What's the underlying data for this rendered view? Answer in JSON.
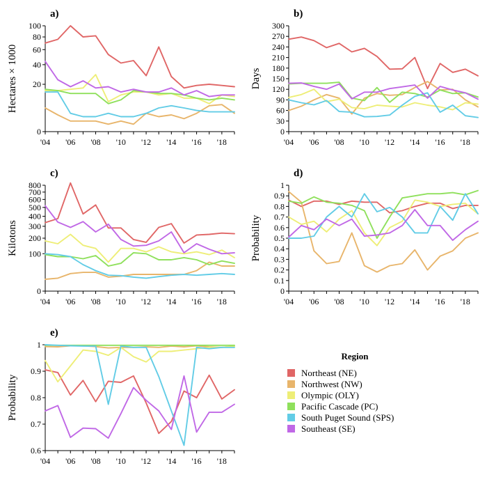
{
  "colors": {
    "NE": "#E06666",
    "NW": "#E8B56B",
    "OLY": "#EEEE77",
    "PC": "#8FE05C",
    "SPS": "#62CCE6",
    "SE": "#C068E6"
  },
  "legend": {
    "title": "Region",
    "items": [
      {
        "key": "NE",
        "label": "Northeast (NE)"
      },
      {
        "key": "NW",
        "label": "Northwest (NW)"
      },
      {
        "key": "OLY",
        "label": "Olympic (OLY)"
      },
      {
        "key": "PC",
        "label": "Pacific Cascade (PC)"
      },
      {
        "key": "SPS",
        "label": "South Puget Sound (SPS)"
      },
      {
        "key": "SE",
        "label": "Southeast (SE)"
      }
    ]
  },
  "chart_data": [
    {
      "id": "a",
      "panel_label": "a)",
      "type": "line",
      "ylabel": "Hectares × 1000",
      "yscale": "sqrt",
      "ylim": [
        0,
        100
      ],
      "yticks": [
        0,
        20,
        40,
        60,
        80,
        100
      ],
      "xticks": [
        "'04",
        "'06",
        "'08",
        "'10",
        "'12",
        "'14",
        "'16",
        "'18"
      ],
      "x": [
        2004,
        2005,
        2006,
        2007,
        2008,
        2009,
        2010,
        2011,
        2012,
        2013,
        2014,
        2015,
        2016,
        2017,
        2018,
        2019
      ],
      "series": [
        {
          "key": "NE",
          "values": [
            70,
            76,
            100,
            80,
            82,
            53,
            42,
            45,
            28,
            64,
            27,
            17,
            19,
            20,
            19,
            18
          ]
        },
        {
          "key": "NW",
          "values": [
            5,
            2.5,
            1,
            1,
            1,
            0.5,
            1,
            0.5,
            3,
            2,
            2.5,
            1.5,
            3,
            6,
            6.5,
            3
          ]
        },
        {
          "key": "OLY",
          "values": [
            15,
            15,
            16,
            17,
            29,
            8,
            12,
            14,
            14,
            12,
            13,
            10,
            10,
            7,
            12,
            11
          ]
        },
        {
          "key": "PC",
          "values": [
            16,
            15,
            13,
            13,
            13,
            7,
            9,
            15,
            14,
            13,
            13,
            12,
            10,
            9,
            10,
            9
          ]
        },
        {
          "key": "SPS",
          "values": [
            14,
            14,
            3,
            2,
            2,
            3,
            2,
            2,
            3,
            5,
            6,
            5,
            4,
            3.5,
            3.5,
            3.5
          ]
        },
        {
          "key": "SE",
          "values": [
            44,
            24,
            18,
            23,
            17,
            18,
            14,
            16,
            14,
            14,
            17,
            12,
            15,
            11,
            12,
            12
          ]
        }
      ]
    },
    {
      "id": "b",
      "panel_label": "b)",
      "type": "line",
      "ylabel": "Days",
      "yscale": "linear",
      "ylim": [
        0,
        300
      ],
      "yticks": [
        0,
        30,
        60,
        90,
        120,
        150,
        180,
        210,
        240,
        270,
        300
      ],
      "xticks": [
        "'04",
        "'06",
        "'08",
        "'10",
        "'12",
        "'14",
        "'16",
        "'18"
      ],
      "x": [
        2004,
        2005,
        2006,
        2007,
        2008,
        2009,
        2010,
        2011,
        2012,
        2013,
        2014,
        2015,
        2016,
        2017,
        2018,
        2019
      ],
      "series": [
        {
          "key": "NE",
          "values": [
            262,
            268,
            258,
            238,
            250,
            226,
            236,
            213,
            177,
            178,
            210,
            122,
            193,
            168,
            177,
            158
          ]
        },
        {
          "key": "NW",
          "values": [
            60,
            72,
            90,
            105,
            95,
            50,
            95,
            108,
            103,
            105,
            125,
            142,
            118,
            120,
            90,
            70
          ]
        },
        {
          "key": "OLY",
          "values": [
            97,
            105,
            120,
            85,
            92,
            68,
            65,
            75,
            72,
            70,
            82,
            75,
            70,
            62,
            82,
            78
          ]
        },
        {
          "key": "PC",
          "values": [
            135,
            137,
            137,
            137,
            140,
            95,
            88,
            125,
            83,
            112,
            108,
            98,
            118,
            108,
            110,
            98
          ]
        },
        {
          "key": "SPS",
          "values": [
            90,
            82,
            76,
            88,
            57,
            55,
            42,
            43,
            47,
            75,
            100,
            110,
            55,
            75,
            45,
            40
          ]
        },
        {
          "key": "SE",
          "values": [
            137,
            138,
            128,
            120,
            135,
            93,
            112,
            112,
            122,
            127,
            132,
            95,
            128,
            118,
            110,
            92
          ]
        }
      ]
    },
    {
      "id": "c",
      "panel_label": "c)",
      "type": "line",
      "ylabel": "Kilotons",
      "yscale": "sqrt",
      "ylim": [
        0,
        800
      ],
      "yticks": [
        0,
        100,
        200,
        300,
        400,
        500,
        600,
        700,
        800
      ],
      "xticks": [
        "'04",
        "'06",
        "'08",
        "'10",
        "'12",
        "'14",
        "'16",
        "'18"
      ],
      "x": [
        2004,
        2005,
        2006,
        2007,
        2008,
        2009,
        2010,
        2011,
        2012,
        2013,
        2014,
        2015,
        2016,
        2017,
        2018,
        2019
      ],
      "series": [
        {
          "key": "NE",
          "values": [
            335,
            375,
            835,
            425,
            530,
            285,
            285,
            190,
            170,
            290,
            325,
            165,
            225,
            230,
            240,
            235
          ]
        },
        {
          "key": "NW",
          "values": [
            10,
            12,
            22,
            25,
            25,
            14,
            16,
            20,
            20,
            20,
            20,
            20,
            30,
            60,
            45,
            45
          ]
        },
        {
          "key": "OLY",
          "values": [
            180,
            160,
            230,
            150,
            130,
            60,
            130,
            130,
            110,
            140,
            110,
            100,
            110,
            95,
            120,
            80
          ]
        },
        {
          "key": "PC",
          "values": [
            95,
            85,
            85,
            75,
            90,
            45,
            55,
            105,
            100,
            70,
            70,
            80,
            70,
            50,
            65,
            55
          ]
        },
        {
          "key": "SPS",
          "values": [
            100,
            95,
            85,
            50,
            30,
            18,
            17,
            14,
            12,
            15,
            18,
            20,
            18,
            20,
            22,
            20
          ]
        },
        {
          "key": "SE",
          "values": [
            520,
            340,
            290,
            345,
            250,
            320,
            190,
            145,
            150,
            180,
            250,
            105,
            160,
            125,
            100,
            105
          ]
        }
      ]
    },
    {
      "id": "d",
      "panel_label": "d)",
      "type": "line",
      "ylabel": "Probability",
      "yscale": "linear",
      "ylim": [
        0,
        1
      ],
      "yticks": [
        0,
        0.1,
        0.2,
        0.3,
        0.4,
        0.5,
        0.6,
        0.7,
        0.8,
        0.9,
        1
      ],
      "yticklabels": [
        "0",
        "0.1",
        "0.2",
        "0.3",
        "0.4",
        "0.5",
        "0.6",
        "0.7",
        "0.8",
        "0.9",
        "1"
      ],
      "xticks": [
        "'04",
        "'06",
        "'08",
        "'10",
        "'12",
        "'14",
        "'16",
        "'18"
      ],
      "x": [
        2004,
        2005,
        2006,
        2007,
        2008,
        2009,
        2010,
        2011,
        2012,
        2013,
        2014,
        2015,
        2016,
        2017,
        2018,
        2019
      ],
      "series": [
        {
          "key": "NE",
          "values": [
            0.86,
            0.8,
            0.85,
            0.85,
            0.82,
            0.85,
            0.84,
            0.84,
            0.74,
            0.76,
            0.8,
            0.83,
            0.83,
            0.78,
            0.81,
            0.81
          ]
        },
        {
          "key": "NW",
          "values": [
            0.94,
            0.84,
            0.38,
            0.26,
            0.28,
            0.55,
            0.24,
            0.18,
            0.24,
            0.26,
            0.39,
            0.2,
            0.33,
            0.38,
            0.5,
            0.55
          ]
        },
        {
          "key": "OLY",
          "values": [
            0.7,
            0.63,
            0.66,
            0.56,
            0.68,
            0.76,
            0.55,
            0.43,
            0.6,
            0.66,
            0.86,
            0.84,
            0.8,
            0.82,
            0.83,
            0.73
          ]
        },
        {
          "key": "PC",
          "values": [
            0.85,
            0.83,
            0.89,
            0.84,
            0.83,
            0.81,
            0.76,
            0.5,
            0.7,
            0.88,
            0.9,
            0.92,
            0.92,
            0.93,
            0.91,
            0.95
          ]
        },
        {
          "key": "SPS",
          "values": [
            0.5,
            0.5,
            0.52,
            0.7,
            0.8,
            0.7,
            0.92,
            0.75,
            0.79,
            0.7,
            0.55,
            0.55,
            0.8,
            0.67,
            0.92,
            0.73
          ]
        },
        {
          "key": "SE",
          "values": [
            0.51,
            0.62,
            0.58,
            0.68,
            0.62,
            0.68,
            0.52,
            0.53,
            0.55,
            0.62,
            0.77,
            0.62,
            0.62,
            0.48,
            0.58,
            0.66
          ]
        }
      ]
    },
    {
      "id": "e",
      "panel_label": "e)",
      "type": "line",
      "ylabel": "Probability",
      "yscale": "linear",
      "ylim": [
        0.6,
        1
      ],
      "yticks": [
        0.6,
        0.7,
        0.8,
        0.9,
        1
      ],
      "yticklabels": [
        "0.6",
        "0.7",
        "0.8",
        "0.9",
        "1"
      ],
      "xticks": [
        "'04",
        "'06",
        "'08",
        "'10",
        "'12",
        "'14",
        "'16",
        "'18"
      ],
      "x": [
        2004,
        2005,
        2006,
        2007,
        2008,
        2009,
        2010,
        2011,
        2012,
        2013,
        2014,
        2015,
        2016,
        2017,
        2018,
        2019
      ],
      "series": [
        {
          "key": "NE",
          "values": [
            0.905,
            0.895,
            0.81,
            0.865,
            0.785,
            0.862,
            0.858,
            0.882,
            0.78,
            0.665,
            0.71,
            0.825,
            0.8,
            0.885,
            0.795,
            0.83
          ]
        },
        {
          "key": "NW",
          "values": [
            0.993,
            0.992,
            0.996,
            0.996,
            0.993,
            0.988,
            0.99,
            0.99,
            0.992,
            0.99,
            0.995,
            0.992,
            0.996,
            0.992,
            0.99,
            0.995
          ]
        },
        {
          "key": "OLY",
          "values": [
            0.94,
            0.86,
            0.92,
            0.98,
            0.975,
            0.96,
            0.99,
            0.955,
            0.935,
            0.975,
            0.975,
            0.98,
            0.985,
            0.99,
            0.99,
            0.995
          ]
        },
        {
          "key": "PC",
          "values": [
            0.998,
            0.998,
            0.998,
            0.998,
            0.998,
            0.998,
            0.998,
            0.998,
            0.998,
            0.998,
            0.998,
            0.998,
            0.998,
            0.998,
            0.998,
            0.998
          ]
        },
        {
          "key": "SPS",
          "values": [
            1.0,
            0.998,
            0.996,
            0.995,
            0.995,
            0.775,
            0.995,
            0.99,
            0.99,
            0.88,
            0.75,
            0.62,
            0.99,
            0.985,
            0.99,
            0.99
          ]
        },
        {
          "key": "SE",
          "values": [
            0.75,
            0.77,
            0.65,
            0.685,
            0.683,
            0.647,
            0.74,
            0.838,
            0.79,
            0.75,
            0.68,
            0.882,
            0.67,
            0.745,
            0.745,
            0.775
          ]
        }
      ]
    }
  ]
}
